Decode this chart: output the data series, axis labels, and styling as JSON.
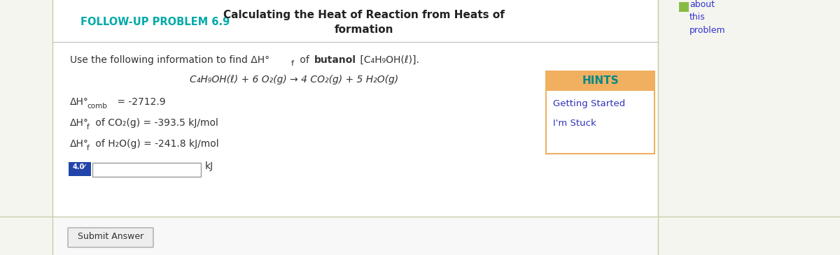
{
  "bg_color": "#ffffff",
  "outer_bg": "#f5f5f0",
  "page_bg": "#ffffff",
  "title": "Calculating the Heat of Reaction from Heats of\nformation",
  "title_color": "#222222",
  "title_fontsize": 11,
  "followup_label": "FOLLOW-UP PROBLEM 6.9",
  "followup_color": "#00aaaa",
  "about_text": "about\nthis\nproblem",
  "about_color": "#3333cc",
  "hints_label": "HINTS",
  "hints_bg": "#f0b060",
  "hints_text_color": "#008888",
  "getting_started": "Getting Started",
  "im_stuck": "I'm Stuck",
  "hints_link_color": "#3333bb",
  "input_badge_bg": "#2244aa",
  "input_badge_color": "#ffffff",
  "input_label": "4.0",
  "kj_label": "kJ",
  "submit_label": "Submit Answer",
  "text_color": "#333333",
  "border_color": "#bbbbbb",
  "separator_color": "#ccccaa"
}
